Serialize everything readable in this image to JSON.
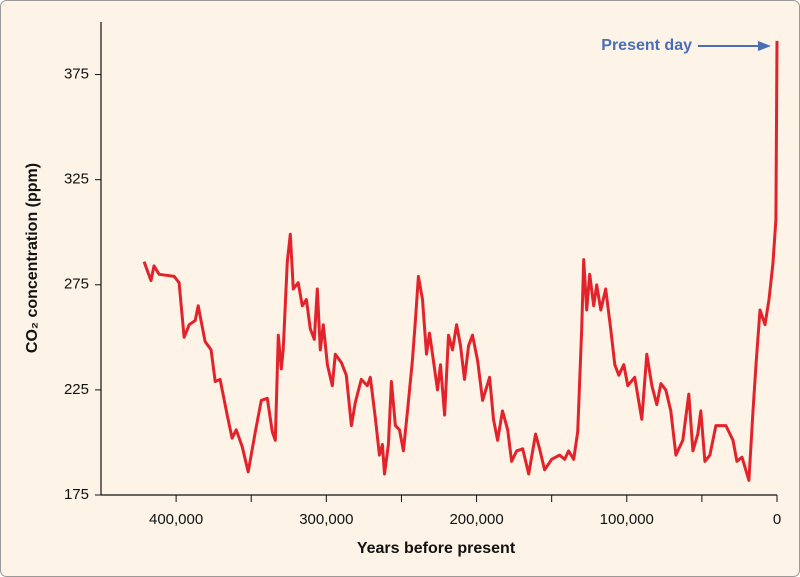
{
  "chart_data": {
    "type": "line",
    "ylabel": "CO₂ concentration (ppm)",
    "xlabel": "Years before present",
    "annotation": "Present day",
    "color": "#e3232b",
    "xlim": [
      450000,
      0
    ],
    "xticks": [
      {
        "value": 400000,
        "label": "400,000"
      },
      {
        "value": 300000,
        "label": "300,000"
      },
      {
        "value": 200000,
        "label": "200,000"
      },
      {
        "value": 100000,
        "label": "100,000"
      },
      0
    ],
    "xminor_ticks": [
      350000,
      250000,
      150000,
      50000
    ],
    "ylim": [
      175,
      400
    ],
    "yticks": [
      175,
      225,
      275,
      325,
      375
    ],
    "x": [
      421300,
      416700,
      414700,
      411300,
      401300,
      398000,
      394700,
      391300,
      387300,
      385300,
      380700,
      376700,
      374000,
      370700,
      366000,
      362700,
      360000,
      356000,
      352000,
      347300,
      343300,
      339300,
      336000,
      334000,
      332000,
      330000,
      328700,
      326000,
      324000,
      322000,
      318700,
      316000,
      313300,
      310700,
      308000,
      306000,
      304000,
      302000,
      299300,
      296000,
      294000,
      290000,
      286700,
      283300,
      280700,
      276700,
      272700,
      270700,
      267300,
      264700,
      262700,
      261300,
      258700,
      256700,
      254000,
      251300,
      248700,
      246000,
      242700,
      240700,
      238700,
      236000,
      233300,
      231300,
      228700,
      226000,
      224000,
      221300,
      218700,
      216000,
      213300,
      210700,
      208000,
      205300,
      202700,
      199300,
      196000,
      191300,
      188700,
      186000,
      182700,
      179300,
      176700,
      173300,
      169300,
      165300,
      160700,
      158000,
      154700,
      150000,
      144700,
      141300,
      138700,
      135300,
      132700,
      130000,
      128700,
      126700,
      124700,
      122000,
      120000,
      117300,
      114000,
      110700,
      108000,
      105300,
      102000,
      99300,
      94700,
      90000,
      86700,
      83300,
      80000,
      77300,
      74000,
      70700,
      67300,
      62700,
      58700,
      56000,
      52700,
      50700,
      48000,
      44700,
      40700,
      34000,
      29300,
      26700,
      23300,
      18700,
      16000,
      14000,
      11300,
      8000,
      5300,
      2700,
      700,
      0
    ],
    "values": [
      286,
      277,
      284,
      280,
      279,
      276,
      250,
      256,
      258,
      265,
      248,
      244,
      229,
      230,
      213,
      202,
      206,
      198,
      186,
      205,
      220,
      221,
      205,
      201,
      251,
      235,
      244,
      286,
      299,
      273,
      276,
      265,
      268,
      254,
      249,
      273,
      244,
      256,
      237,
      227,
      242,
      238,
      232,
      208,
      219,
      230,
      227,
      231,
      211,
      194,
      199,
      185,
      199,
      229,
      208,
      206,
      196,
      215,
      239,
      258,
      279,
      268,
      242,
      252,
      239,
      225,
      237,
      213,
      251,
      244,
      256,
      246,
      230,
      246,
      251,
      239,
      220,
      231,
      211,
      201,
      215,
      206,
      191,
      196,
      197,
      185,
      204,
      197,
      187,
      192,
      194,
      192,
      196,
      192,
      205,
      254,
      287,
      263,
      280,
      265,
      275,
      263,
      273,
      254,
      237,
      232,
      237,
      227,
      231,
      211,
      242,
      227,
      218,
      228,
      225,
      215,
      194,
      201,
      223,
      196,
      204,
      215,
      191,
      194,
      208,
      208,
      201,
      191,
      193,
      182,
      215,
      237,
      263,
      256,
      268,
      285,
      306,
      391
    ]
  }
}
